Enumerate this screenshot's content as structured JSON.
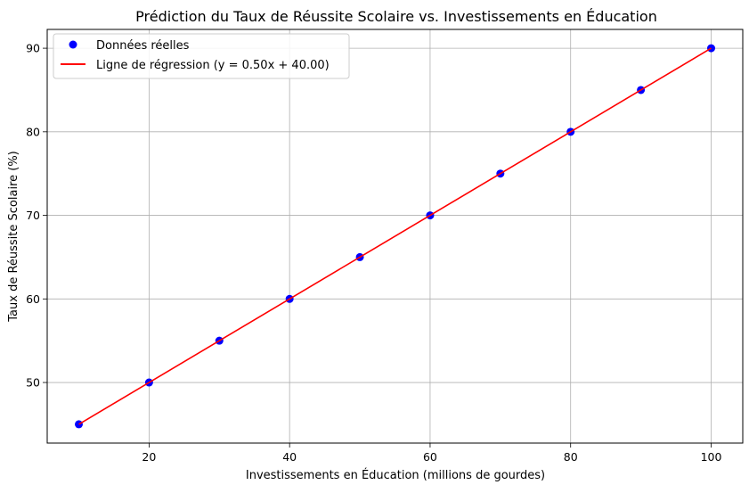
{
  "chart_data": {
    "type": "scatter",
    "title": "Prédiction du Taux de Réussite Scolaire vs. Investissements en Éducation",
    "xlabel": "Investissements en Éducation (millions de gourdes)",
    "ylabel": "Taux de Réussite Scolaire (%)",
    "xlim": [
      5.5,
      104.5
    ],
    "ylim": [
      42.75,
      92.25
    ],
    "x_ticks": [
      20,
      40,
      60,
      80,
      100
    ],
    "y_ticks": [
      50,
      60,
      70,
      80,
      90
    ],
    "grid": true,
    "legend_position": "top-left",
    "series": [
      {
        "name": "Données réelles",
        "kind": "scatter",
        "color": "#0000ff",
        "x": [
          10,
          20,
          30,
          40,
          50,
          60,
          70,
          80,
          90,
          100
        ],
        "y": [
          45,
          50,
          55,
          60,
          65,
          70,
          75,
          80,
          85,
          90
        ]
      },
      {
        "name": "Ligne de régression (y = 0.50x + 40.00)",
        "kind": "line",
        "color": "#ff0000",
        "x": [
          10,
          20,
          30,
          40,
          50,
          60,
          70,
          80,
          90,
          100
        ],
        "y": [
          45,
          50,
          55,
          60,
          65,
          70,
          75,
          80,
          85,
          90
        ]
      }
    ]
  }
}
